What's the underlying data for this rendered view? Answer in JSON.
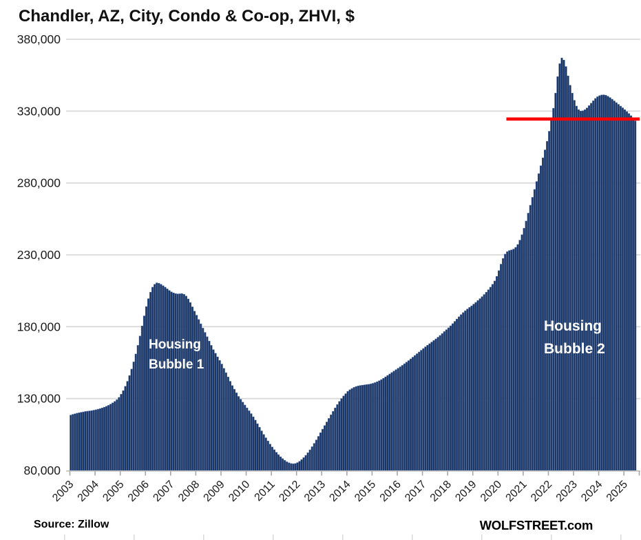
{
  "chart": {
    "title": "Chandler, AZ, City, Condo & Co-op, ZHVI, $",
    "annotations": {
      "bubble1": [
        "Housing",
        "Bubble 1"
      ],
      "bubble2": [
        "Housing",
        "Bubble 2"
      ]
    },
    "footer": {
      "source": "Source: Zillow",
      "brand": "WOLFSTREET.com"
    }
  },
  "colors": {
    "bar_fill": "#1e3357",
    "bar_edge": "#3f65a6",
    "gridline": "#d9d9d9",
    "axis_line": "#bfbfbf",
    "tick_mark": "#a6a6a6",
    "red_line": "#ff0000",
    "axis_text": "#1a1a1a",
    "annotation_text": "#ffffff"
  },
  "chart_data": {
    "type": "bar",
    "title": "Chandler, AZ, City, Condo & Co-op, ZHVI, $",
    "unit": "USD",
    "frequency": "monthly",
    "start_month": "2003-01",
    "end_month": "2025-06",
    "ylim": [
      80000,
      380000
    ],
    "grid": true,
    "y_ticks": [
      {
        "label": "380,000",
        "value": 380000
      },
      {
        "label": "330,000",
        "value": 330000
      },
      {
        "label": "280,000",
        "value": 280000
      },
      {
        "label": "230,000",
        "value": 230000
      },
      {
        "label": "180,000",
        "value": 180000
      },
      {
        "label": "130,000",
        "value": 130000
      },
      {
        "label": "80,000",
        "value": 80000
      }
    ],
    "x_tick_years": [
      "2003",
      "2004",
      "2005",
      "2006",
      "2007",
      "2008",
      "2009",
      "2010",
      "2011",
      "2012",
      "2013",
      "2014",
      "2015",
      "2016",
      "2017",
      "2018",
      "2019",
      "2020",
      "2021",
      "2022",
      "2023",
      "2024",
      "2025"
    ],
    "red_line": {
      "value": 324500,
      "start_month": "2020-05"
    },
    "values": [
      118500,
      119000,
      119400,
      119800,
      120100,
      120400,
      120700,
      121000,
      121200,
      121400,
      121600,
      121900,
      122200,
      122600,
      123000,
      123500,
      124000,
      124600,
      125300,
      126100,
      127000,
      128000,
      129200,
      130800,
      133000,
      135500,
      138500,
      142000,
      146000,
      150500,
      155500,
      161000,
      167000,
      173500,
      180500,
      187500,
      194000,
      199500,
      204000,
      207500,
      209500,
      210500,
      210200,
      209500,
      208500,
      207500,
      206300,
      205200,
      204200,
      203500,
      203000,
      202800,
      202900,
      203000,
      202500,
      201300,
      199300,
      196800,
      193800,
      190800,
      188000,
      185000,
      182000,
      179000,
      176000,
      173000,
      170000,
      167000,
      164000,
      161500,
      159000,
      156500,
      154000,
      151000,
      148000,
      145000,
      142000,
      139000,
      136500,
      134000,
      131500,
      129500,
      127500,
      125500,
      123500,
      121500,
      119500,
      117300,
      115000,
      112500,
      110000,
      107500,
      105000,
      102700,
      100500,
      98300,
      96300,
      94400,
      92600,
      91000,
      89500,
      88200,
      87000,
      86000,
      85300,
      84800,
      84600,
      84800,
      85400,
      86300,
      87500,
      88900,
      90500,
      92300,
      94300,
      96500,
      98800,
      101200,
      103700,
      106200,
      108700,
      111200,
      113700,
      116200,
      118700,
      121100,
      123500,
      125800,
      128000,
      130000,
      131800,
      133400,
      135000,
      136100,
      137000,
      137800,
      138400,
      138800,
      139100,
      139300,
      139500,
      139700,
      139900,
      140200,
      140600,
      141100,
      141700,
      142400,
      143200,
      144100,
      145100,
      146100,
      147100,
      148100,
      149100,
      150100,
      151100,
      152100,
      153100,
      154200,
      155300,
      156400,
      157600,
      158800,
      160000,
      161200,
      162400,
      163600,
      164800,
      166000,
      167100,
      168200,
      169300,
      170400,
      171500,
      172700,
      173900,
      175200,
      176600,
      177900,
      179200,
      180600,
      182100,
      183700,
      185300,
      186900,
      188400,
      189800,
      191100,
      192300,
      193400,
      194500,
      195700,
      196900,
      198200,
      199500,
      200900,
      202400,
      204000,
      205700,
      207500,
      209500,
      211800,
      215000,
      219000,
      223500,
      227500,
      230500,
      232200,
      233000,
      233400,
      234000,
      235200,
      237200,
      240200,
      244000,
      248500,
      253500,
      259000,
      264500,
      270000,
      275500,
      281000,
      286500,
      292000,
      297500,
      303000,
      309000,
      316000,
      323500,
      332000,
      342500,
      354000,
      363000,
      367000,
      365500,
      361000,
      354500,
      348000,
      342500,
      337500,
      333500,
      331000,
      330000,
      330200,
      331000,
      332200,
      333800,
      335500,
      337200,
      338800,
      340000,
      340800,
      341200,
      341300,
      341000,
      340300,
      339400,
      338300,
      337100,
      335900,
      334700,
      333500,
      332300,
      331000,
      329700,
      328300,
      326800,
      325100,
      323200
    ]
  }
}
